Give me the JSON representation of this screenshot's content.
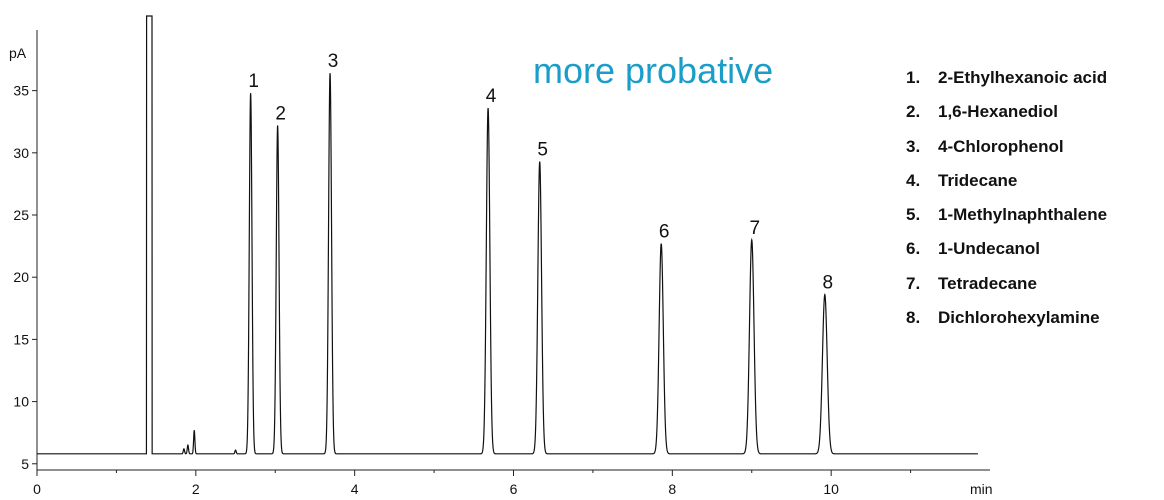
{
  "chart_data": {
    "type": "line",
    "title": "",
    "annotation": "more probative",
    "xlabel": "min",
    "ylabel": "pA",
    "xlim": [
      0,
      12
    ],
    "ylim": [
      4.5,
      41
    ],
    "x_ticks": [
      0,
      2,
      4,
      6,
      8,
      10
    ],
    "y_ticks": [
      5,
      10,
      15,
      20,
      25,
      30,
      35
    ],
    "baseline": 5.8,
    "solvent_peak": {
      "start": 1.38,
      "end": 1.45,
      "top": 41
    },
    "minor_peaks": [
      {
        "x": 1.85,
        "height": 6.2
      },
      {
        "x": 1.9,
        "height": 6.5
      },
      {
        "x": 1.98,
        "height": 7.7
      },
      {
        "x": 2.5,
        "height": 6.1
      }
    ],
    "peaks": [
      {
        "label": "1",
        "retention_time": 2.69,
        "height": 34.8
      },
      {
        "label": "2",
        "retention_time": 3.03,
        "height": 32.2
      },
      {
        "label": "3",
        "retention_time": 3.69,
        "height": 36.4
      },
      {
        "label": "4",
        "retention_time": 5.68,
        "height": 33.6
      },
      {
        "label": "5",
        "retention_time": 6.33,
        "height": 29.3
      },
      {
        "label": "6",
        "retention_time": 7.86,
        "height": 22.7
      },
      {
        "label": "7",
        "retention_time": 9.0,
        "height": 23.0
      },
      {
        "label": "8",
        "retention_time": 9.92,
        "height": 18.6
      }
    ],
    "legend": [
      {
        "num": "1.",
        "name": "2-Ethylhexanoic acid"
      },
      {
        "num": "2.",
        "name": "1,6-Hexanediol"
      },
      {
        "num": "3.",
        "name": "4-Chlorophenol"
      },
      {
        "num": "4.",
        "name": "Tridecane"
      },
      {
        "num": "5.",
        "name": "1-Methylnaphthalene"
      },
      {
        "num": "6.",
        "name": "1-Undecanol"
      },
      {
        "num": "7.",
        "name": "Tetradecane"
      },
      {
        "num": "8.",
        "name": "Dichlorohexylamine"
      }
    ],
    "grid": false,
    "colors": {
      "trace": "#111111",
      "annotation": "#1a9ec9",
      "axis": "#222222"
    }
  }
}
